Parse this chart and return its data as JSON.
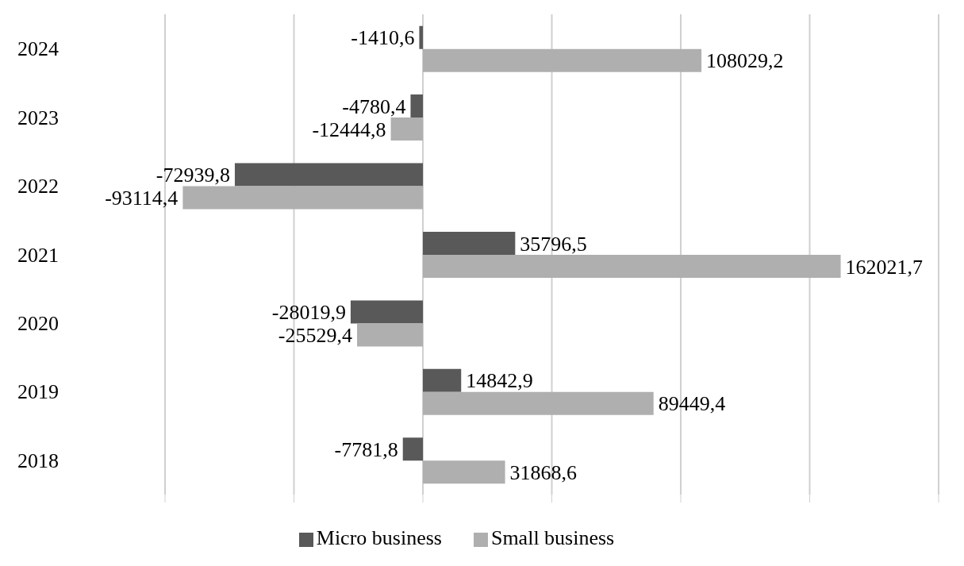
{
  "chart_data": {
    "type": "bar",
    "orientation": "horizontal",
    "categories": [
      "2024",
      "2023",
      "2022",
      "2021",
      "2020",
      "2019",
      "2018"
    ],
    "series": [
      {
        "name": "Micro business",
        "color": "#595959",
        "values": [
          -1410.6,
          -4780.4,
          -72939.8,
          35796.5,
          -28019.9,
          14842.9,
          -7781.8
        ],
        "value_labels": [
          "-1410,6",
          "-4780,4",
          "-72939,8",
          "35796,5",
          "-28019,9",
          "14842,9",
          "-7781,8"
        ]
      },
      {
        "name": "Small business",
        "color": "#afafaf",
        "values": [
          108029.2,
          -12444.8,
          -93114.4,
          162021.7,
          -25529.4,
          89449.4,
          31868.6
        ],
        "value_labels": [
          "108029,2",
          "-12444,8",
          "-93114,4",
          "162021,7",
          "-25529,4",
          "89449,4",
          "31868,6"
        ]
      }
    ],
    "xlim": [
      -100000,
      200000
    ],
    "xticks": [
      {
        "value": -100000,
        "label": null
      },
      {
        "value": -50000,
        "label": null
      },
      {
        "value": 0,
        "label": null
      },
      {
        "value": 50000,
        "label": null
      },
      {
        "value": 100000,
        "label": null
      },
      {
        "value": 150000,
        "label": null
      },
      {
        "value": 200000,
        "label": null
      }
    ],
    "grid": "x",
    "legend": "bottom",
    "tick_labels": "y"
  }
}
